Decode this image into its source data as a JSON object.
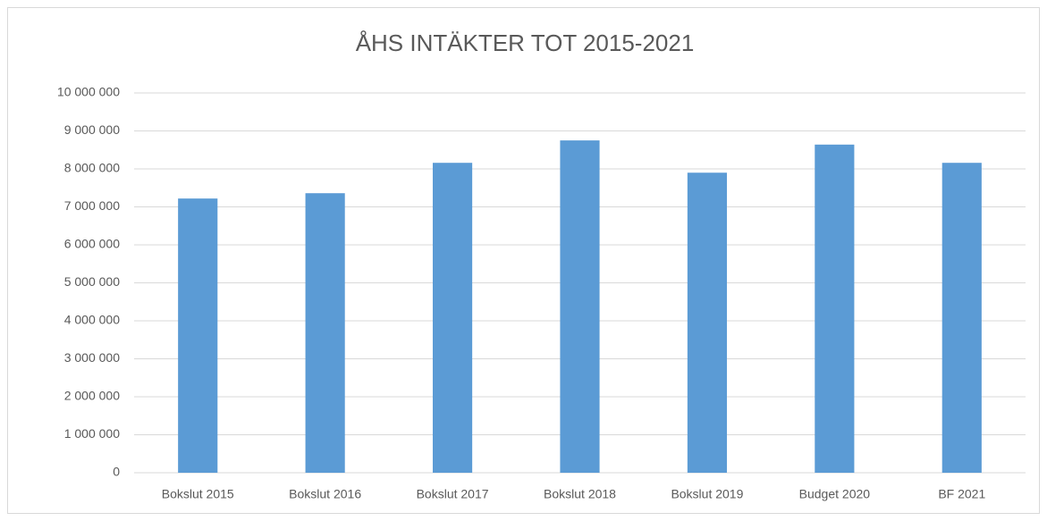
{
  "chart_data": {
    "type": "bar",
    "title": "ÅHS INTÄKTER TOT 2015-2021",
    "categories": [
      "Bokslut 2015",
      "Bokslut 2016",
      "Bokslut 2017",
      "Bokslut 2018",
      "Bokslut 2019",
      "Budget 2020",
      "BF 2021"
    ],
    "values": [
      7220000,
      7360000,
      8160000,
      8750000,
      7900000,
      8640000,
      8160000
    ],
    "color": "#5b9bd5",
    "ylim": [
      0,
      10000000
    ],
    "yticks": [
      0,
      {
        "value": 1000000,
        "label": "1 000 000"
      },
      {
        "value": 2000000,
        "label": "2 000 000"
      },
      {
        "value": 3000000,
        "label": "3 000 000"
      },
      {
        "value": 4000000,
        "label": "4 000 000"
      },
      {
        "value": 5000000,
        "label": "5 000 000"
      },
      {
        "value": 6000000,
        "label": "6 000 000"
      },
      {
        "value": 7000000,
        "label": "7 000 000"
      },
      {
        "value": 8000000,
        "label": "8 000 000"
      },
      {
        "value": 9000000,
        "label": "9 000 000"
      },
      {
        "value": 10000000,
        "label": "10 000 000"
      }
    ],
    "grid": true
  }
}
